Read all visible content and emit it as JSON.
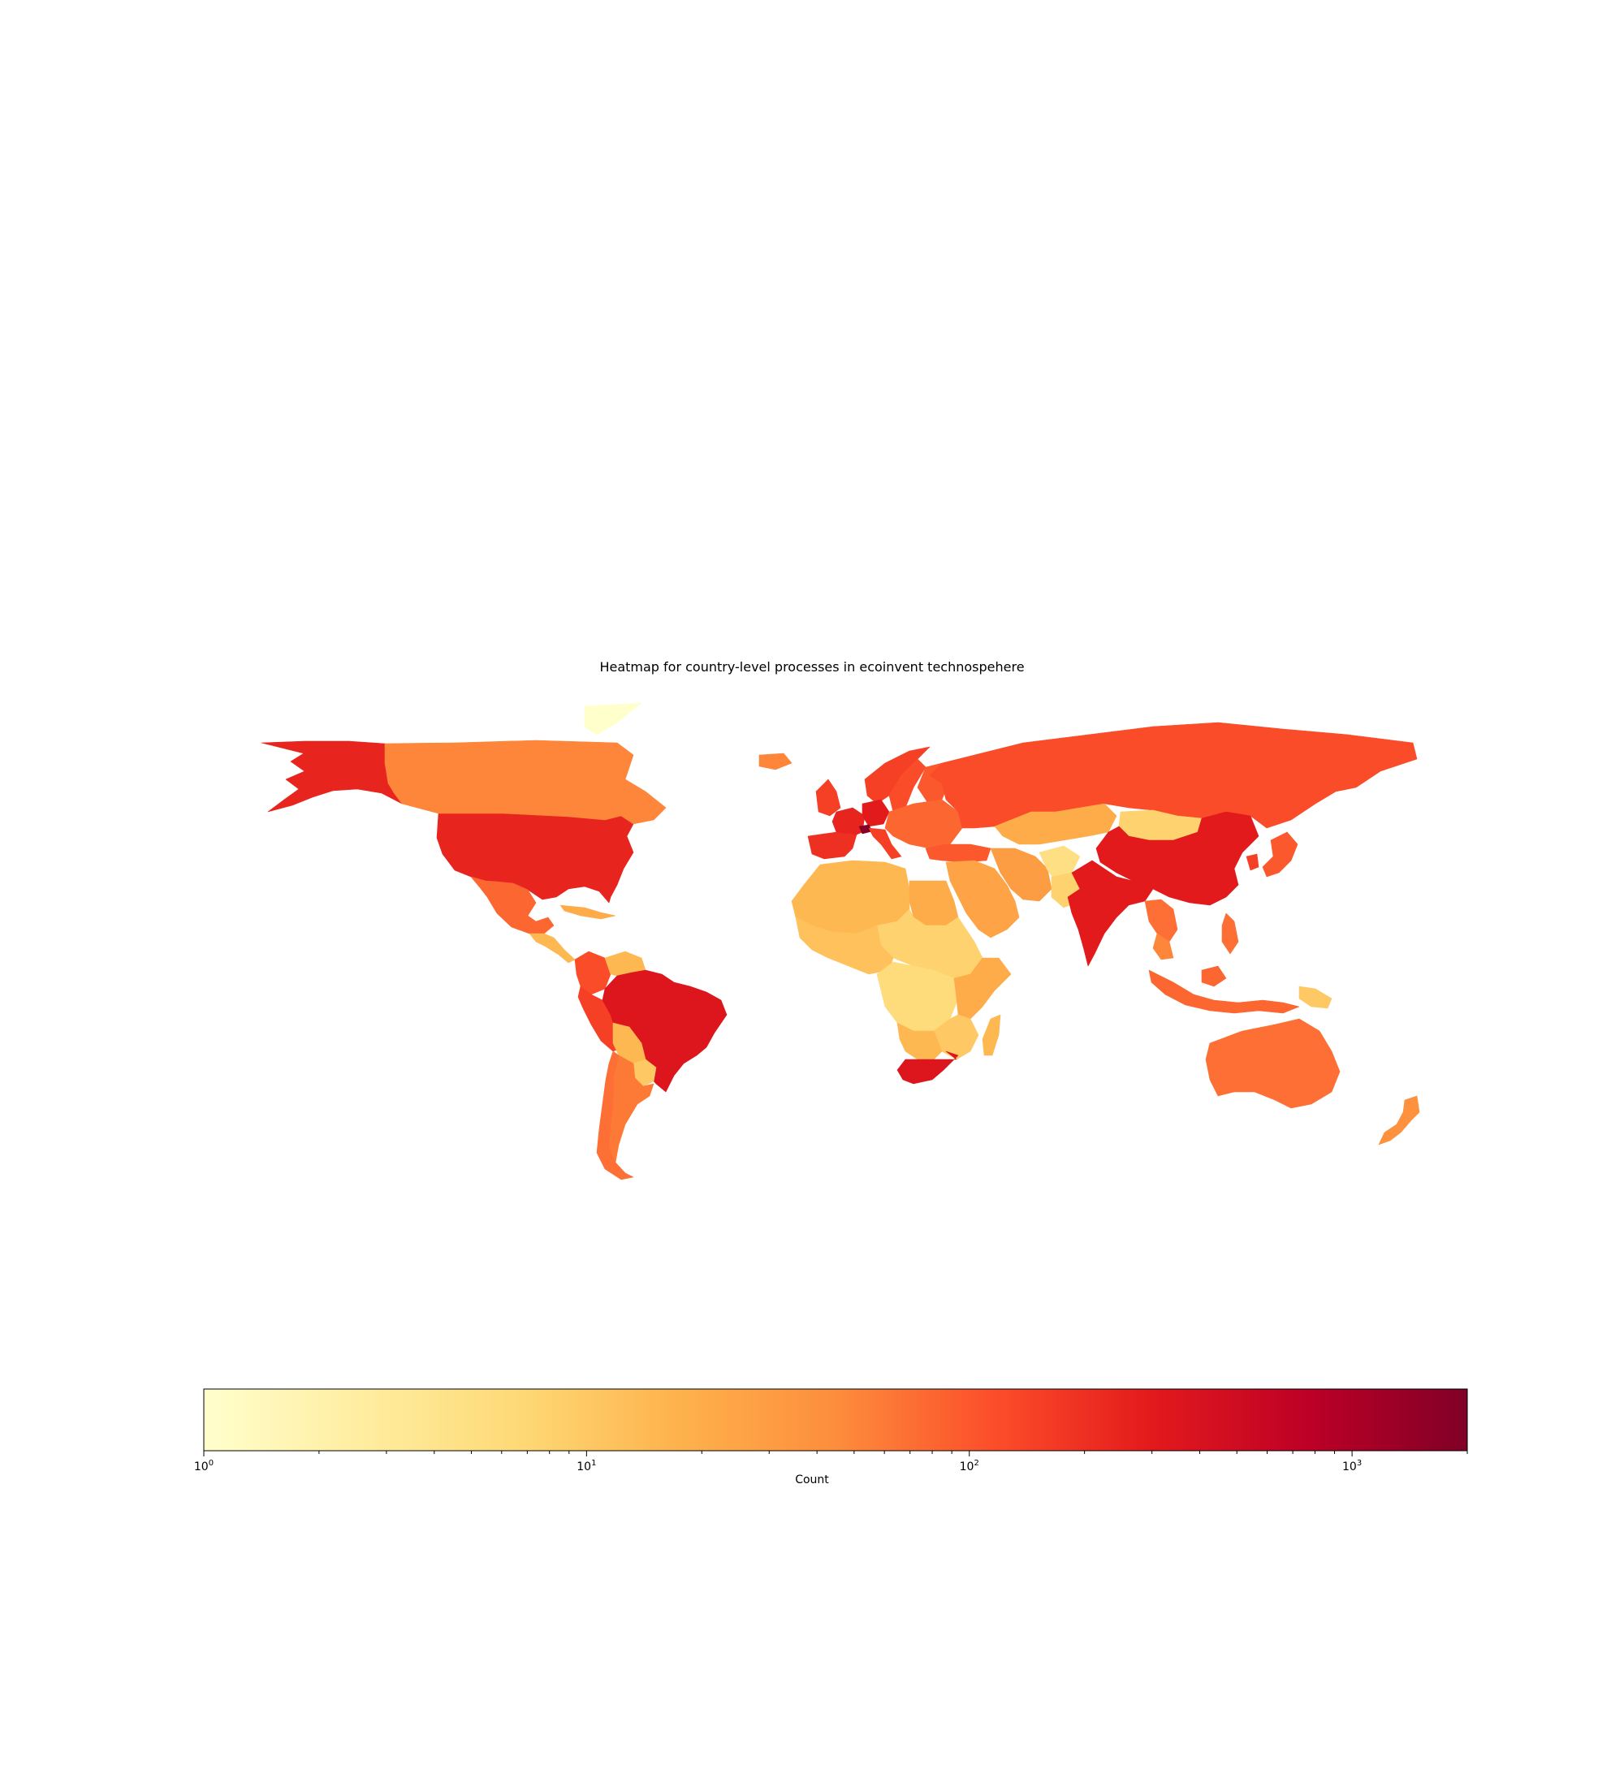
{
  "chart_data": {
    "type": "heatmap",
    "title": "Heatmap for country-level processes in ecoinvent technospehere",
    "colorbar": {
      "label": "Count",
      "scale": "log",
      "range": [
        1,
        2000
      ],
      "colormap": "YlOrRd",
      "colormap_stops": [
        "#ffffcc",
        "#ffeda0",
        "#fed976",
        "#feb24c",
        "#fd8d3c",
        "#fc4e2a",
        "#e31a1c",
        "#bd0026",
        "#800026"
      ],
      "major_ticks": [
        {
          "value": 1,
          "base": "10",
          "exp": "0"
        },
        {
          "value": 10,
          "base": "10",
          "exp": "1"
        },
        {
          "value": 100,
          "base": "10",
          "exp": "2"
        },
        {
          "value": 1000,
          "base": "10",
          "exp": "3"
        }
      ]
    },
    "regions": [
      {
        "name": "Alaska (US)",
        "value": 250
      },
      {
        "name": "United States",
        "value": 250
      },
      {
        "name": "Canada",
        "value": 50
      },
      {
        "name": "Greenland",
        "value": 1
      },
      {
        "name": "Mexico",
        "value": 80
      },
      {
        "name": "Central America",
        "value": 15
      },
      {
        "name": "Caribbean",
        "value": 20
      },
      {
        "name": "Colombia",
        "value": 120
      },
      {
        "name": "Venezuela",
        "value": 15
      },
      {
        "name": "Peru",
        "value": 150
      },
      {
        "name": "Brazil",
        "value": 350
      },
      {
        "name": "Bolivia",
        "value": 15
      },
      {
        "name": "Paraguay",
        "value": 10
      },
      {
        "name": "Argentina",
        "value": 60
      },
      {
        "name": "Chile",
        "value": 70
      },
      {
        "name": "Iceland",
        "value": 50
      },
      {
        "name": "Norway",
        "value": 150
      },
      {
        "name": "Sweden",
        "value": 120
      },
      {
        "name": "Finland",
        "value": 100
      },
      {
        "name": "United Kingdom",
        "value": 150
      },
      {
        "name": "Spain",
        "value": 200
      },
      {
        "name": "France",
        "value": 250
      },
      {
        "name": "Germany",
        "value": 300
      },
      {
        "name": "Switzerland",
        "value": 1800
      },
      {
        "name": "Italy",
        "value": 150
      },
      {
        "name": "Eastern Europe",
        "value": 80
      },
      {
        "name": "Russia",
        "value": 120
      },
      {
        "name": "Turkey",
        "value": 100
      },
      {
        "name": "Kazakhstan",
        "value": 20
      },
      {
        "name": "Mongolia",
        "value": 8
      },
      {
        "name": "China",
        "value": 300
      },
      {
        "name": "Japan",
        "value": 100
      },
      {
        "name": "South Korea",
        "value": 150
      },
      {
        "name": "Middle East",
        "value": 25
      },
      {
        "name": "Iran",
        "value": 30
      },
      {
        "name": "Afghanistan",
        "value": 5
      },
      {
        "name": "Pakistan",
        "value": 8
      },
      {
        "name": "India",
        "value": 300
      },
      {
        "name": "Southeast Asia",
        "value": 70
      },
      {
        "name": "Thailand",
        "value": 50
      },
      {
        "name": "Philippines",
        "value": 70
      },
      {
        "name": "Indonesia",
        "value": 80
      },
      {
        "name": "Papua New Guinea",
        "value": 10
      },
      {
        "name": "Australia",
        "value": 70
      },
      {
        "name": "New Zealand",
        "value": 40
      },
      {
        "name": "North Africa",
        "value": 15
      },
      {
        "name": "Egypt",
        "value": 20
      },
      {
        "name": "Sahel",
        "value": 8
      },
      {
        "name": "West Africa",
        "value": 12
      },
      {
        "name": "Central Africa",
        "value": 6
      },
      {
        "name": "East Africa",
        "value": 20
      },
      {
        "name": "Southern Africa",
        "value": 10
      },
      {
        "name": "Namibia/Botswana",
        "value": 15
      },
      {
        "name": "South Africa",
        "value": 350
      },
      {
        "name": "Madagascar",
        "value": 15
      }
    ]
  }
}
